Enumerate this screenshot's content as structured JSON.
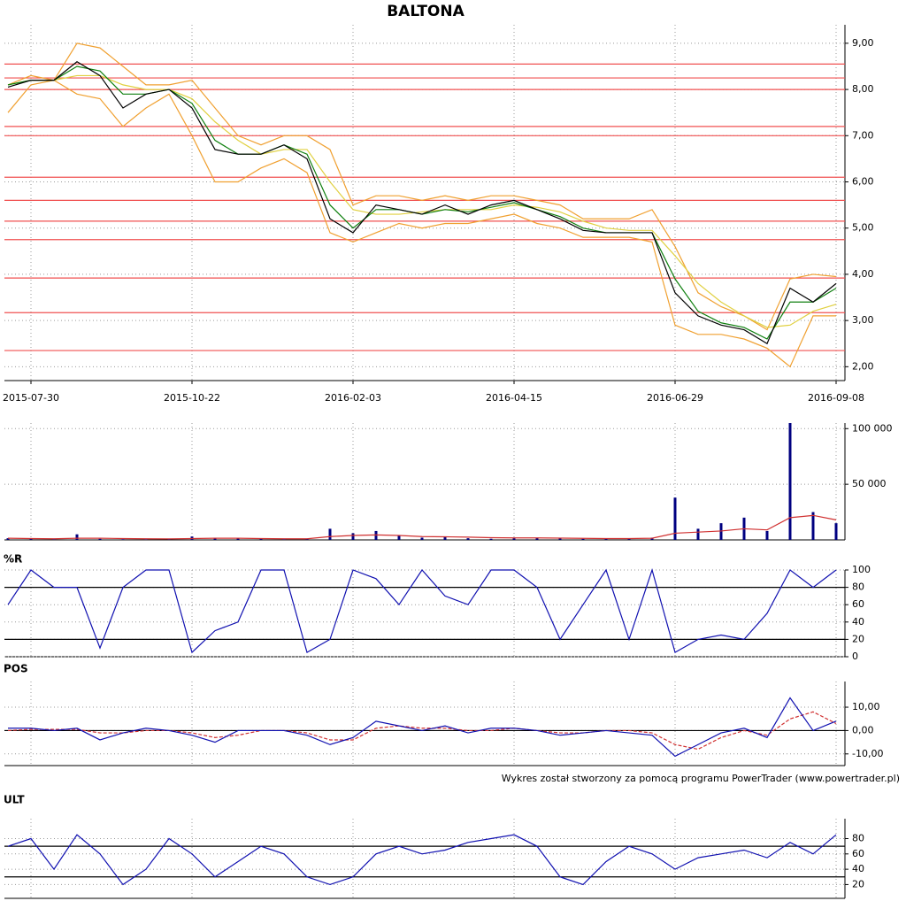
{
  "title": "BALTONA",
  "credit": "Wykres został stworzony za pomocą programu PowerTrader (www.powertrader.pl)",
  "chart_data": [
    {
      "type": "line",
      "grid": true,
      "categories": [
        null,
        "2015-07-30",
        null,
        null,
        null,
        null,
        null,
        null,
        "2015-10-22",
        null,
        null,
        null,
        null,
        null,
        null,
        "2016-02-03",
        null,
        null,
        null,
        null,
        null,
        null,
        "2016-04-15",
        null,
        null,
        null,
        null,
        null,
        null,
        "2016-06-29",
        null,
        null,
        null,
        null,
        null,
        null,
        "2016-09-08"
      ],
      "ylim": [
        1.7,
        9.4
      ],
      "yticks": [
        {
          "value": 2,
          "label": "2,00"
        },
        {
          "value": 3,
          "label": "3,00"
        },
        {
          "value": 4,
          "label": "4,00"
        },
        {
          "value": 5,
          "label": "5,00"
        },
        {
          "value": 6,
          "label": "6,00"
        },
        {
          "value": 7,
          "label": "7,00"
        },
        {
          "value": 8,
          "label": "8,00"
        },
        {
          "value": 9,
          "label": "9,00"
        }
      ],
      "levels": [
        8.55,
        8.25,
        8.0,
        7.2,
        7.0,
        6.1,
        5.6,
        5.15,
        4.75,
        3.92,
        3.17,
        2.35
      ],
      "level_color": "#f05050",
      "series": [
        {
          "color": "#f0a030",
          "values": [
            8.1,
            8.3,
            8.2,
            9.0,
            8.9,
            8.5,
            8.1,
            8.1,
            8.2,
            7.6,
            7.0,
            6.8,
            7.0,
            7.0,
            6.7,
            5.5,
            5.7,
            5.7,
            5.6,
            5.7,
            5.6,
            5.7,
            5.7,
            5.6,
            5.5,
            5.2,
            5.2,
            5.2,
            5.4,
            4.6,
            3.6,
            3.3,
            3.1,
            2.8,
            3.9,
            4.0,
            3.95
          ]
        },
        {
          "color": "#f0a030",
          "values": [
            7.5,
            8.1,
            8.2,
            7.9,
            7.8,
            7.2,
            7.6,
            7.9,
            7.0,
            6.0,
            6.0,
            6.3,
            6.5,
            6.2,
            4.9,
            4.7,
            4.9,
            5.1,
            5.0,
            5.1,
            5.1,
            5.2,
            5.3,
            5.1,
            5.0,
            4.8,
            4.8,
            4.8,
            4.7,
            2.9,
            2.7,
            2.7,
            2.6,
            2.4,
            2.0,
            3.1,
            3.1
          ]
        },
        {
          "color": "#e0d040",
          "values": [
            8.1,
            8.2,
            8.2,
            8.3,
            8.3,
            8.1,
            8.0,
            8.0,
            7.8,
            7.3,
            6.9,
            6.6,
            6.7,
            6.7,
            6.0,
            5.4,
            5.3,
            5.3,
            5.35,
            5.4,
            5.4,
            5.4,
            5.5,
            5.45,
            5.35,
            5.15,
            5.0,
            4.95,
            4.95,
            4.4,
            3.8,
            3.4,
            3.1,
            2.85,
            2.9,
            3.2,
            3.35
          ]
        },
        {
          "color": "#108010",
          "values": [
            8.1,
            8.2,
            8.2,
            8.5,
            8.4,
            7.9,
            7.9,
            8.0,
            7.7,
            6.9,
            6.6,
            6.6,
            6.8,
            6.6,
            5.5,
            5.0,
            5.4,
            5.4,
            5.3,
            5.4,
            5.35,
            5.45,
            5.55,
            5.4,
            5.25,
            5.0,
            4.9,
            4.9,
            4.9,
            3.9,
            3.2,
            2.95,
            2.85,
            2.6,
            3.4,
            3.4,
            3.7
          ]
        },
        {
          "color": "#000000",
          "values": [
            8.05,
            8.2,
            8.2,
            8.6,
            8.3,
            7.6,
            7.9,
            8.0,
            7.6,
            6.7,
            6.6,
            6.6,
            6.8,
            6.5,
            5.2,
            4.9,
            5.5,
            5.4,
            5.3,
            5.5,
            5.3,
            5.5,
            5.6,
            5.4,
            5.2,
            4.95,
            4.9,
            4.9,
            4.9,
            3.6,
            3.1,
            2.9,
            2.8,
            2.5,
            3.7,
            3.4,
            3.8
          ]
        }
      ]
    },
    {
      "type": "bar",
      "grid": true,
      "ylim": [
        0,
        105000
      ],
      "yticks": [
        {
          "value": 50000,
          "label": "50 000"
        },
        {
          "value": 100000,
          "label": "100 000"
        }
      ],
      "series": [
        {
          "type": "bar",
          "color": "#000080",
          "values": [
            1500,
            800,
            500,
            5000,
            1000,
            600,
            400,
            500,
            3000,
            2000,
            1500,
            800,
            500,
            1000,
            10000,
            6000,
            8000,
            4000,
            2000,
            3000,
            1500,
            1000,
            1500,
            2000,
            1200,
            1000,
            800,
            1500,
            2000,
            38000,
            10000,
            15000,
            20000,
            8000,
            105000,
            25000,
            15000
          ]
        },
        {
          "type": "line",
          "color": "#d03030",
          "values": [
            1500,
            1200,
            1000,
            1500,
            1500,
            1200,
            1000,
            900,
            1200,
            1500,
            1500,
            1200,
            1000,
            1000,
            3000,
            4000,
            4500,
            4000,
            3000,
            2800,
            2500,
            2000,
            1800,
            1800,
            1600,
            1400,
            1200,
            1200,
            1500,
            6000,
            7000,
            8000,
            10000,
            9000,
            20000,
            22000,
            18000
          ]
        }
      ]
    },
    {
      "type": "line",
      "title": "%R",
      "grid": true,
      "ylim": [
        0,
        100
      ],
      "yticks": [
        0,
        20,
        40,
        60,
        80,
        100
      ],
      "levels": [
        20,
        80
      ],
      "level_color": "#000000",
      "series": [
        {
          "color": "#1010b0",
          "values": [
            60,
            100,
            80,
            80,
            10,
            80,
            100,
            100,
            5,
            30,
            40,
            100,
            100,
            5,
            20,
            100,
            90,
            60,
            100,
            70,
            60,
            100,
            100,
            80,
            20,
            60,
            100,
            20,
            100,
            5,
            20,
            25,
            20,
            50,
            100,
            80,
            100
          ]
        }
      ]
    },
    {
      "type": "line",
      "title": "POS",
      "grid": true,
      "ylim": [
        -15,
        21
      ],
      "yticks": [
        {
          "value": -10,
          "label": "-10,00"
        },
        {
          "value": 0,
          "label": "0,00"
        },
        {
          "value": 10,
          "label": "10,00"
        }
      ],
      "levels": [
        0
      ],
      "level_color": "#000000",
      "series": [
        {
          "color": "#d03030",
          "dashed": true,
          "values": [
            0,
            0.5,
            0.5,
            0.5,
            -1,
            -1,
            0,
            0,
            -1,
            -3,
            -2,
            0,
            0,
            -1,
            -4,
            -4,
            1,
            2,
            1,
            1,
            0,
            0,
            1,
            0,
            -1,
            -1,
            0,
            0,
            -1,
            -6,
            -8,
            -3,
            0,
            -2,
            5,
            8,
            3
          ]
        },
        {
          "color": "#1010b0",
          "values": [
            1,
            1,
            0,
            1,
            -4,
            -1,
            1,
            0,
            -2,
            -5,
            0,
            0,
            0,
            -2,
            -6,
            -3,
            4,
            2,
            0,
            2,
            -1,
            1,
            1,
            0,
            -2,
            -1,
            0,
            -1,
            -2,
            -11,
            -6,
            -1,
            1,
            -3,
            14,
            0,
            4
          ]
        }
      ]
    },
    {
      "type": "line",
      "title": "ULT",
      "grid": true,
      "ylim": [
        2,
        106
      ],
      "yticks": [
        20,
        40,
        60,
        80
      ],
      "levels": [
        30,
        70
      ],
      "level_color": "#000000",
      "series": [
        {
          "color": "#1010b0",
          "values": [
            70,
            80,
            40,
            85,
            60,
            20,
            40,
            80,
            60,
            30,
            50,
            70,
            60,
            30,
            20,
            30,
            60,
            70,
            60,
            65,
            75,
            80,
            85,
            70,
            30,
            20,
            50,
            70,
            60,
            40,
            55,
            60,
            65,
            55,
            75,
            60,
            85
          ]
        }
      ]
    }
  ]
}
